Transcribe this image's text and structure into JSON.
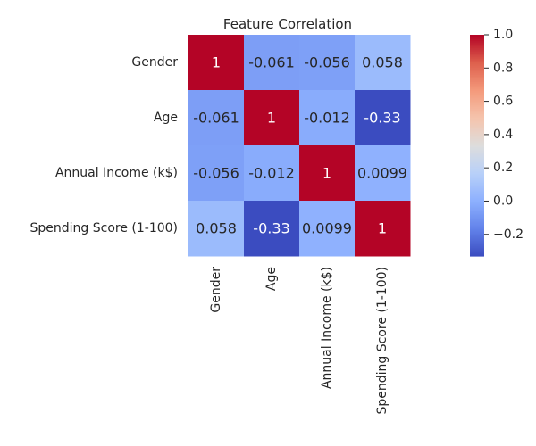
{
  "chart_data": {
    "type": "heatmap",
    "title": "Feature Correlation",
    "xlabel": "",
    "ylabel": "",
    "row_labels": [
      "Gender",
      "Age",
      "Annual Income (k$)",
      "Spending Score (1-100)"
    ],
    "col_labels": [
      "Gender",
      "Age",
      "Annual Income (k$)",
      "Spending Score (1-100)"
    ],
    "values": [
      [
        1,
        -0.061,
        -0.056,
        0.058
      ],
      [
        -0.061,
        1,
        -0.012,
        -0.33
      ],
      [
        -0.056,
        -0.012,
        1,
        0.0099
      ],
      [
        0.058,
        -0.33,
        0.0099,
        1
      ]
    ],
    "cell_labels": [
      [
        "1",
        "-0.061",
        "-0.056",
        "0.058"
      ],
      [
        "-0.061",
        "1",
        "-0.012",
        "-0.33"
      ],
      [
        "-0.056",
        "-0.012",
        "1",
        "0.0099"
      ],
      [
        "0.058",
        "-0.33",
        "0.0099",
        "1"
      ]
    ],
    "colormap": "coolwarm",
    "vmin": -0.33,
    "vmax": 1.0,
    "colorbar": {
      "ticks": [
        -0.2,
        0.0,
        0.2,
        0.4,
        0.6,
        0.8,
        1.0
      ],
      "tick_labels": [
        "−0.2",
        "0.0",
        "0.2",
        "0.4",
        "0.6",
        "0.8",
        "1.0"
      ]
    },
    "grid": false
  }
}
